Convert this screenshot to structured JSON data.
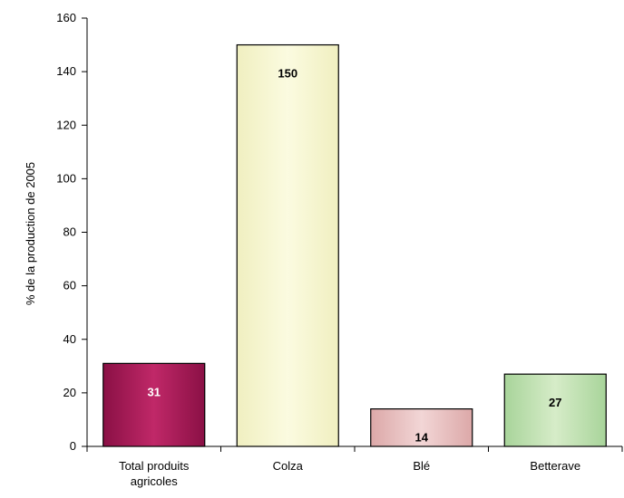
{
  "chart_data": {
    "type": "bar",
    "categories": [
      [
        "Total produits",
        "agricoles"
      ],
      [
        "Colza"
      ],
      [
        "Blé"
      ],
      [
        "Betterave"
      ]
    ],
    "values": [
      31,
      150,
      14,
      27
    ],
    "data_labels": [
      "31",
      "150",
      "14",
      "27"
    ],
    "ylabel": "% de la production de 2005",
    "ylim": [
      0,
      160
    ],
    "yticks": [
      0,
      20,
      40,
      60,
      80,
      100,
      120,
      140,
      160
    ],
    "grid": false,
    "legend": "none",
    "colors": {
      "bar_fill": [
        "#8a1045",
        "#f0efc0",
        "#dca8a8",
        "#a8d49a"
      ],
      "bar_fill_light": [
        "#c02868",
        "#fbfbe0",
        "#f2d6d6",
        "#d6ecc8"
      ],
      "label_color": [
        "#ffffff",
        "#000000",
        "#000000",
        "#000000"
      ],
      "axis": "#000000"
    }
  }
}
